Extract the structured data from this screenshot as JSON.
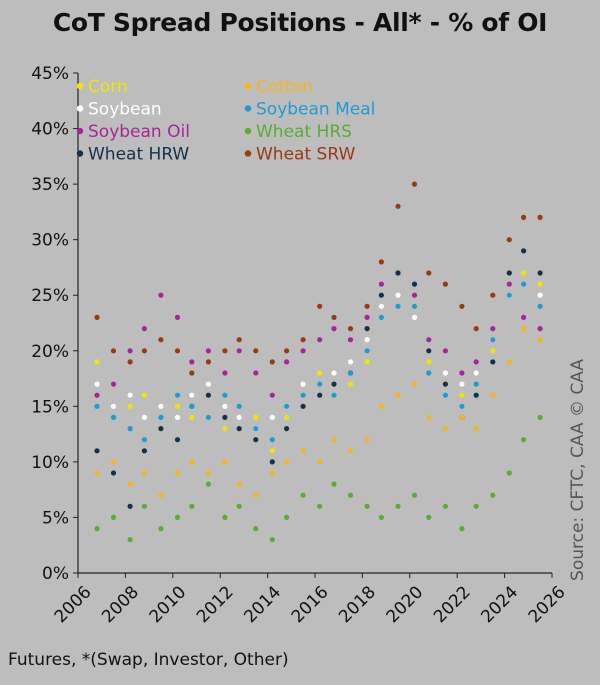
{
  "chart_data": {
    "type": "scatter",
    "title": "CoT Spread Positions - All* - % of OI",
    "footnote": "Futures, *(Swap, Investor, Other)",
    "source": "Source: CFTC, CAA   © CAA",
    "xlabel": "",
    "ylabel": "",
    "xlim": [
      2006,
      2026
    ],
    "ylim": [
      0,
      45
    ],
    "x_ticks": [
      "2006",
      "2008",
      "2010",
      "2012",
      "2014",
      "2016",
      "2018",
      "2020",
      "2022",
      "2024",
      "2026"
    ],
    "y_ticks": [
      "0%",
      "5%",
      "10%",
      "15%",
      "20%",
      "25%",
      "30%",
      "35%",
      "40%",
      "45%"
    ],
    "grid": false,
    "legend_position": "top-left",
    "series": [
      {
        "name": "Corn",
        "color": "#f2e600",
        "points": [
          [
            2006.8,
            19
          ],
          [
            2007.5,
            17
          ],
          [
            2008.2,
            15
          ],
          [
            2008.8,
            16
          ],
          [
            2009.5,
            13
          ],
          [
            2010.2,
            15
          ],
          [
            2010.8,
            14
          ],
          [
            2011.5,
            14
          ],
          [
            2012.2,
            13
          ],
          [
            2012.8,
            15
          ],
          [
            2013.5,
            14
          ],
          [
            2014.2,
            11
          ],
          [
            2014.8,
            14
          ],
          [
            2015.5,
            16
          ],
          [
            2016.2,
            18
          ],
          [
            2016.8,
            16
          ],
          [
            2017.5,
            17
          ],
          [
            2018.2,
            19
          ],
          [
            2018.8,
            23
          ],
          [
            2019.5,
            25
          ],
          [
            2020.2,
            24
          ],
          [
            2020.8,
            19
          ],
          [
            2021.5,
            17
          ],
          [
            2022.2,
            16
          ],
          [
            2022.8,
            17
          ],
          [
            2023.5,
            20
          ],
          [
            2024.2,
            26
          ],
          [
            2024.8,
            27
          ],
          [
            2025.5,
            26
          ]
        ]
      },
      {
        "name": "Soybean",
        "color": "#ffffff",
        "points": [
          [
            2006.8,
            17
          ],
          [
            2007.5,
            15
          ],
          [
            2008.2,
            16
          ],
          [
            2008.8,
            14
          ],
          [
            2009.5,
            15
          ],
          [
            2010.2,
            14
          ],
          [
            2010.8,
            16
          ],
          [
            2011.5,
            17
          ],
          [
            2012.2,
            15
          ],
          [
            2012.8,
            14
          ],
          [
            2013.5,
            13
          ],
          [
            2014.2,
            14
          ],
          [
            2014.8,
            15
          ],
          [
            2015.5,
            17
          ],
          [
            2016.2,
            17
          ],
          [
            2016.8,
            18
          ],
          [
            2017.5,
            19
          ],
          [
            2018.2,
            21
          ],
          [
            2018.8,
            24
          ],
          [
            2019.5,
            25
          ],
          [
            2020.2,
            23
          ],
          [
            2020.8,
            20
          ],
          [
            2021.5,
            18
          ],
          [
            2022.2,
            17
          ],
          [
            2022.8,
            18
          ],
          [
            2023.5,
            21
          ],
          [
            2024.2,
            25
          ],
          [
            2024.8,
            26
          ],
          [
            2025.5,
            25
          ]
        ]
      },
      {
        "name": "Soybean Oil",
        "color": "#a8249a",
        "points": [
          [
            2006.8,
            16
          ],
          [
            2007.5,
            17
          ],
          [
            2008.2,
            20
          ],
          [
            2008.8,
            22
          ],
          [
            2009.5,
            25
          ],
          [
            2010.2,
            23
          ],
          [
            2010.8,
            19
          ],
          [
            2011.5,
            20
          ],
          [
            2012.2,
            18
          ],
          [
            2012.8,
            20
          ],
          [
            2013.5,
            18
          ],
          [
            2014.2,
            16
          ],
          [
            2014.8,
            19
          ],
          [
            2015.5,
            20
          ],
          [
            2016.2,
            21
          ],
          [
            2016.8,
            22
          ],
          [
            2017.5,
            21
          ],
          [
            2018.2,
            23
          ],
          [
            2018.8,
            26
          ],
          [
            2019.5,
            27
          ],
          [
            2020.2,
            25
          ],
          [
            2020.8,
            21
          ],
          [
            2021.5,
            20
          ],
          [
            2022.2,
            18
          ],
          [
            2022.8,
            19
          ],
          [
            2023.5,
            22
          ],
          [
            2024.2,
            26
          ],
          [
            2024.8,
            23
          ],
          [
            2025.5,
            22
          ]
        ]
      },
      {
        "name": "Wheat HRW",
        "color": "#14314a",
        "points": [
          [
            2006.8,
            11
          ],
          [
            2007.5,
            9
          ],
          [
            2008.2,
            6
          ],
          [
            2008.8,
            11
          ],
          [
            2009.5,
            13
          ],
          [
            2010.2,
            12
          ],
          [
            2010.8,
            15
          ],
          [
            2011.5,
            16
          ],
          [
            2012.2,
            14
          ],
          [
            2012.8,
            13
          ],
          [
            2013.5,
            12
          ],
          [
            2014.2,
            10
          ],
          [
            2014.8,
            13
          ],
          [
            2015.5,
            15
          ],
          [
            2016.2,
            16
          ],
          [
            2016.8,
            17
          ],
          [
            2017.5,
            18
          ],
          [
            2018.2,
            22
          ],
          [
            2018.8,
            25
          ],
          [
            2019.5,
            27
          ],
          [
            2020.2,
            26
          ],
          [
            2020.8,
            20
          ],
          [
            2021.5,
            17
          ],
          [
            2022.2,
            14
          ],
          [
            2022.8,
            16
          ],
          [
            2023.5,
            19
          ],
          [
            2024.2,
            27
          ],
          [
            2024.8,
            29
          ],
          [
            2025.5,
            27
          ]
        ]
      },
      {
        "name": "Cotton",
        "color": "#f5b51f",
        "points": [
          [
            2006.8,
            9
          ],
          [
            2007.5,
            10
          ],
          [
            2008.2,
            8
          ],
          [
            2008.8,
            9
          ],
          [
            2009.5,
            7
          ],
          [
            2010.2,
            9
          ],
          [
            2010.8,
            10
          ],
          [
            2011.5,
            9
          ],
          [
            2012.2,
            10
          ],
          [
            2012.8,
            8
          ],
          [
            2013.5,
            7
          ],
          [
            2014.2,
            9
          ],
          [
            2014.8,
            10
          ],
          [
            2015.5,
            11
          ],
          [
            2016.2,
            10
          ],
          [
            2016.8,
            12
          ],
          [
            2017.5,
            11
          ],
          [
            2018.2,
            12
          ],
          [
            2018.8,
            15
          ],
          [
            2019.5,
            16
          ],
          [
            2020.2,
            17
          ],
          [
            2020.8,
            14
          ],
          [
            2021.5,
            13
          ],
          [
            2022.2,
            14
          ],
          [
            2022.8,
            13
          ],
          [
            2023.5,
            16
          ],
          [
            2024.2,
            19
          ],
          [
            2024.8,
            22
          ],
          [
            2025.5,
            21
          ]
        ]
      },
      {
        "name": "Soybean Meal",
        "color": "#1f9bd4",
        "points": [
          [
            2006.8,
            15
          ],
          [
            2007.5,
            14
          ],
          [
            2008.2,
            13
          ],
          [
            2008.8,
            12
          ],
          [
            2009.5,
            14
          ],
          [
            2010.2,
            16
          ],
          [
            2010.8,
            15
          ],
          [
            2011.5,
            14
          ],
          [
            2012.2,
            16
          ],
          [
            2012.8,
            15
          ],
          [
            2013.5,
            13
          ],
          [
            2014.2,
            12
          ],
          [
            2014.8,
            15
          ],
          [
            2015.5,
            16
          ],
          [
            2016.2,
            17
          ],
          [
            2016.8,
            16
          ],
          [
            2017.5,
            18
          ],
          [
            2018.2,
            20
          ],
          [
            2018.8,
            23
          ],
          [
            2019.5,
            24
          ],
          [
            2020.2,
            24
          ],
          [
            2020.8,
            18
          ],
          [
            2021.5,
            16
          ],
          [
            2022.2,
            15
          ],
          [
            2022.8,
            17
          ],
          [
            2023.5,
            21
          ],
          [
            2024.2,
            25
          ],
          [
            2024.8,
            26
          ],
          [
            2025.5,
            24
          ]
        ]
      },
      {
        "name": "Wheat HRS",
        "color": "#5cab34",
        "points": [
          [
            2006.8,
            4
          ],
          [
            2007.5,
            5
          ],
          [
            2008.2,
            3
          ],
          [
            2008.8,
            6
          ],
          [
            2009.5,
            4
          ],
          [
            2010.2,
            5
          ],
          [
            2010.8,
            6
          ],
          [
            2011.5,
            8
          ],
          [
            2012.2,
            5
          ],
          [
            2012.8,
            6
          ],
          [
            2013.5,
            4
          ],
          [
            2014.2,
            3
          ],
          [
            2014.8,
            5
          ],
          [
            2015.5,
            7
          ],
          [
            2016.2,
            6
          ],
          [
            2016.8,
            8
          ],
          [
            2017.5,
            7
          ],
          [
            2018.2,
            6
          ],
          [
            2018.8,
            5
          ],
          [
            2019.5,
            6
          ],
          [
            2020.2,
            7
          ],
          [
            2020.8,
            5
          ],
          [
            2021.5,
            6
          ],
          [
            2022.2,
            4
          ],
          [
            2022.8,
            6
          ],
          [
            2023.5,
            7
          ],
          [
            2024.2,
            9
          ],
          [
            2024.8,
            12
          ],
          [
            2025.5,
            14
          ]
        ]
      },
      {
        "name": "Wheat SRW",
        "color": "#9a3a12",
        "points": [
          [
            2006.8,
            23
          ],
          [
            2007.5,
            20
          ],
          [
            2008.2,
            19
          ],
          [
            2008.8,
            20
          ],
          [
            2009.5,
            21
          ],
          [
            2010.2,
            20
          ],
          [
            2010.8,
            18
          ],
          [
            2011.5,
            19
          ],
          [
            2012.2,
            20
          ],
          [
            2012.8,
            21
          ],
          [
            2013.5,
            20
          ],
          [
            2014.2,
            19
          ],
          [
            2014.8,
            20
          ],
          [
            2015.5,
            21
          ],
          [
            2016.2,
            24
          ],
          [
            2016.8,
            23
          ],
          [
            2017.5,
            22
          ],
          [
            2018.2,
            24
          ],
          [
            2018.8,
            28
          ],
          [
            2019.5,
            33
          ],
          [
            2020.2,
            35
          ],
          [
            2020.8,
            27
          ],
          [
            2021.5,
            26
          ],
          [
            2022.2,
            24
          ],
          [
            2022.8,
            22
          ],
          [
            2023.5,
            25
          ],
          [
            2024.2,
            30
          ],
          [
            2024.8,
            32
          ],
          [
            2025.5,
            32
          ]
        ]
      }
    ]
  }
}
